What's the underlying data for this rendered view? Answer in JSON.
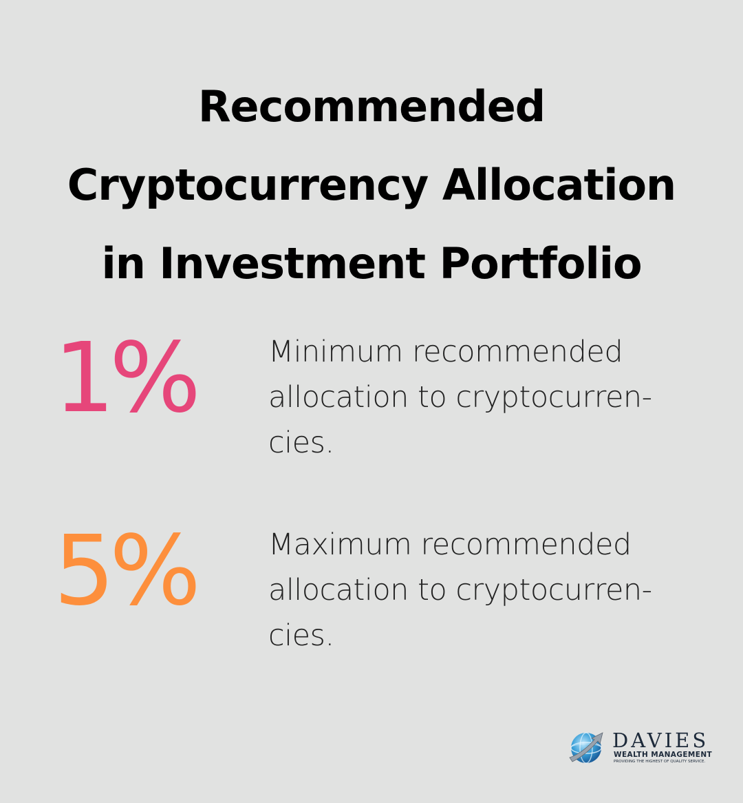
{
  "title": {
    "lines": [
      "Recommended",
      "Cryptocurrency Allocation",
      "in Investment Portfolio"
    ]
  },
  "stats": [
    {
      "value": "1%",
      "color": "#e6467a",
      "description_lines": [
        "Minimum recommended",
        "allocation to cryptocurren-",
        "cies."
      ]
    },
    {
      "value": "5%",
      "color": "#fd8f3c",
      "description_lines": [
        "Maximum recommended",
        "allocation to cryptocurren-",
        "cies."
      ]
    }
  ],
  "logo": {
    "name": "DAVIES",
    "subtitle": "WEALTH MANAGEMENT",
    "tagline": "PROVIDING THE HIGHEST OF QUALITY SERVICE.",
    "icon": "globe-arrow-icon",
    "accent_color": "#3aa0d8"
  }
}
